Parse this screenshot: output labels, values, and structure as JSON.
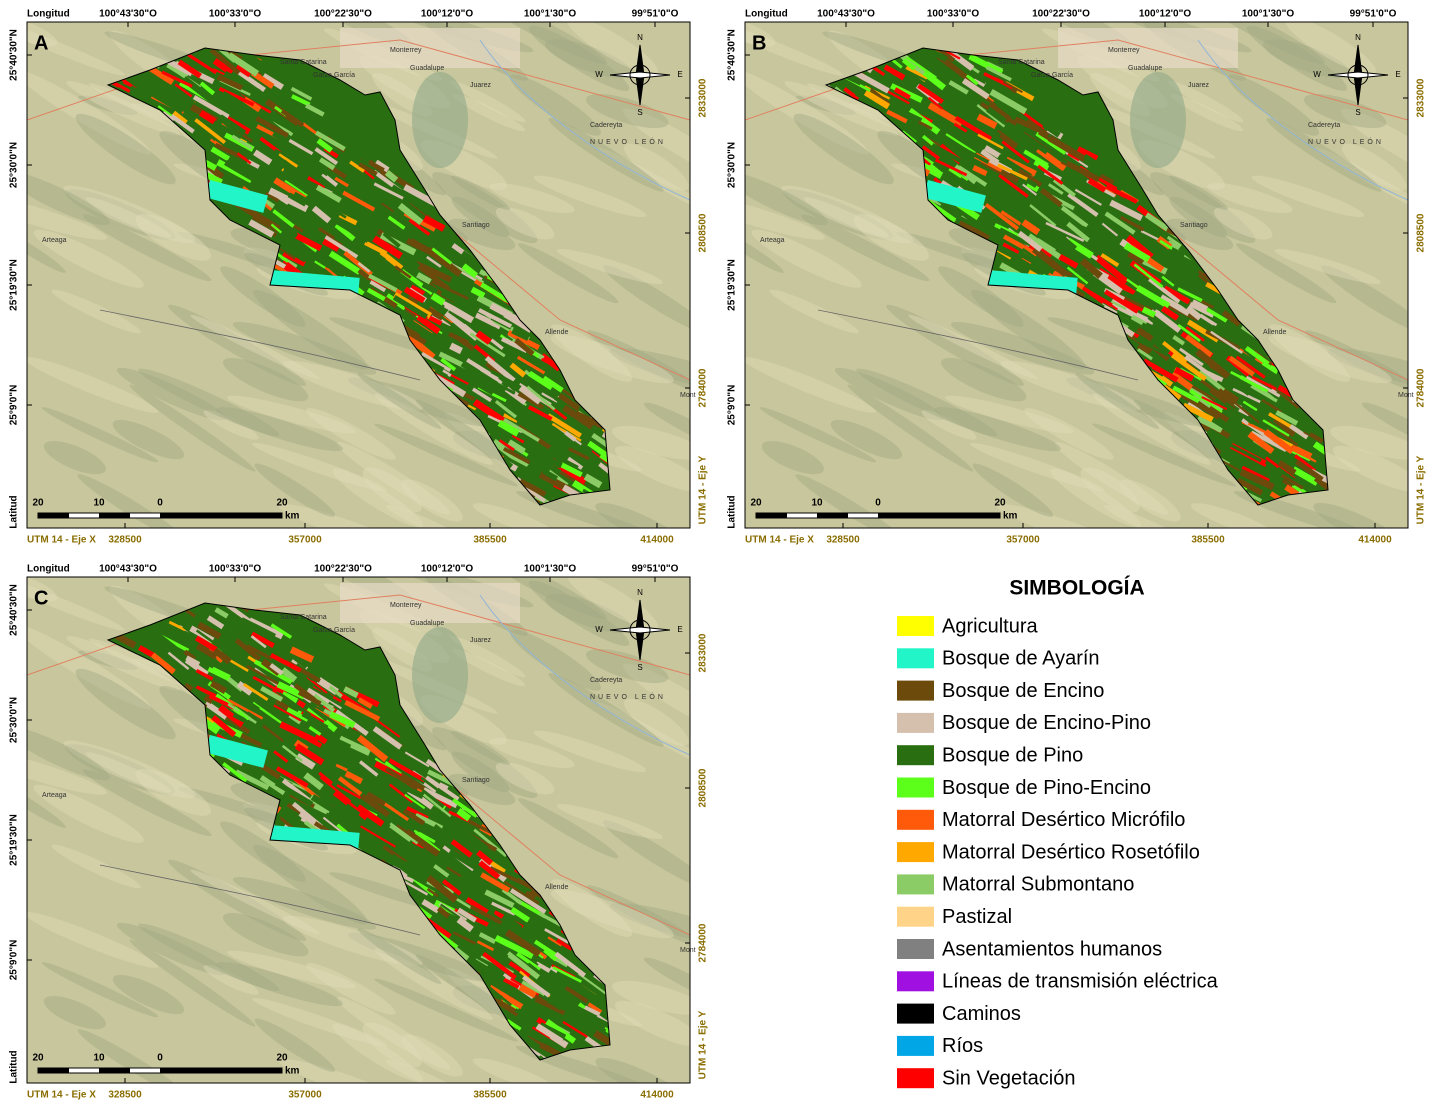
{
  "panels": [
    {
      "label": "A"
    },
    {
      "label": "B"
    },
    {
      "label": "C"
    }
  ],
  "top_axis": {
    "title": "Longitud",
    "ticks": [
      "100°43'30\"O",
      "100°33'0\"O",
      "100°22'30\"O",
      "100°12'0\"O",
      "100°1'30\"O",
      "99°51'0\"O"
    ]
  },
  "left_axis": {
    "title": "Latitud",
    "ticks": [
      "25°40'30\"N",
      "25°30'0\"N",
      "25°19'30\"N",
      "25°9'0\"N"
    ]
  },
  "bottom_axis": {
    "title": "UTM 14 - Eje X",
    "ticks": [
      "328500",
      "357000",
      "385500",
      "414000"
    ]
  },
  "right_axis": {
    "title": "UTM 14 - Eje Y",
    "ticks": [
      "2833000",
      "2808500",
      "2784000"
    ]
  },
  "scale_bar": {
    "labels": [
      "20",
      "10",
      "0",
      "20"
    ],
    "unit": "km"
  },
  "compass": {
    "north": "N",
    "south": "S",
    "east": "E",
    "west": "W"
  },
  "place_names": [
    "Monterrey",
    "Santa Catarina",
    "Garza García",
    "Guadalupe",
    "Juarez",
    "Cadereyta",
    "NUEVO LEÓN",
    "Santiago",
    "Allende",
    "Mont",
    "Arteaga"
  ],
  "legend": {
    "title": "SIMBOLOGÍA",
    "items": [
      {
        "label": "Agricultura",
        "color": "#ffff00"
      },
      {
        "label": "Bosque de Ayarín",
        "color": "#22f5c8"
      },
      {
        "label": "Bosque de Encino",
        "color": "#6b4a0c"
      },
      {
        "label": "Bosque de Encino-Pino",
        "color": "#d5c0ae"
      },
      {
        "label": "Bosque de Pino",
        "color": "#2a6e12"
      },
      {
        "label": "Bosque de Pino-Encino",
        "color": "#5cff1a"
      },
      {
        "label": "Matorral Desértico Micrófilo",
        "color": "#ff5a0a"
      },
      {
        "label": "Matorral Desértico Rosetófilo",
        "color": "#ffa800"
      },
      {
        "label": "Matorral Submontano",
        "color": "#8ccc66"
      },
      {
        "label": "Pastizal",
        "color": "#ffd488"
      },
      {
        "label": "Asentamientos humanos",
        "color": "#808080"
      },
      {
        "label": "Líneas de transmisión eléctrica",
        "color": "#a010e0"
      },
      {
        "label": "Caminos",
        "color": "#000000"
      },
      {
        "label": "Ríos",
        "color": "#00a6e6"
      },
      {
        "label": "Sin Vegetación",
        "color": "#ff0000"
      }
    ]
  }
}
